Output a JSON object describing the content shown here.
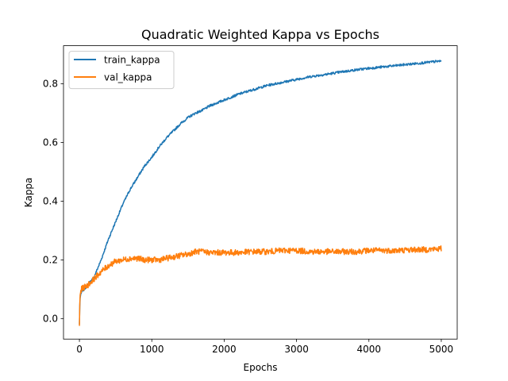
{
  "chart_data": {
    "type": "line",
    "title": "Quadratic Weighted Kappa vs Epochs",
    "xlabel": "Epochs",
    "ylabel": "Kappa",
    "xlim": [
      -220,
      5220
    ],
    "ylim": [
      -0.07,
      0.93
    ],
    "xticks": [
      0,
      1000,
      2000,
      3000,
      4000,
      5000
    ],
    "xtick_labels": [
      "0",
      "1000",
      "2000",
      "3000",
      "4000",
      "5000"
    ],
    "yticks": [
      0.0,
      0.2,
      0.4,
      0.6,
      0.8
    ],
    "ytick_labels": [
      "0.0",
      "0.2",
      "0.4",
      "0.6",
      "0.8"
    ],
    "grid": false,
    "legend_position": "top-left",
    "series": [
      {
        "name": "train_kappa",
        "color": "#1f77b4",
        "x": [
          0,
          5,
          10,
          20,
          30,
          50,
          100,
          200,
          300,
          400,
          500,
          600,
          700,
          800,
          900,
          1000,
          1100,
          1200,
          1300,
          1400,
          1500,
          1600,
          1700,
          1800,
          1900,
          2000,
          2200,
          2400,
          2600,
          2800,
          3000,
          3200,
          3400,
          3600,
          3800,
          4000,
          4200,
          4400,
          4600,
          4800,
          5000
        ],
        "values": [
          -0.02,
          0.04,
          0.07,
          0.085,
          0.09,
          0.095,
          0.11,
          0.14,
          0.2,
          0.27,
          0.33,
          0.39,
          0.44,
          0.48,
          0.52,
          0.55,
          0.585,
          0.615,
          0.64,
          0.665,
          0.685,
          0.7,
          0.71,
          0.725,
          0.735,
          0.745,
          0.765,
          0.78,
          0.795,
          0.805,
          0.815,
          0.825,
          0.832,
          0.84,
          0.847,
          0.853,
          0.858,
          0.863,
          0.868,
          0.873,
          0.878
        ]
      },
      {
        "name": "val_kappa",
        "color": "#ff7f0e",
        "x": [
          0,
          5,
          10,
          20,
          30,
          50,
          100,
          200,
          300,
          400,
          500,
          600,
          700,
          800,
          900,
          1000,
          1100,
          1200,
          1300,
          1400,
          1500,
          1600,
          1700,
          1800,
          1900,
          2000,
          2200,
          2400,
          2600,
          2800,
          3000,
          3200,
          3400,
          3600,
          3800,
          4000,
          4200,
          4400,
          4600,
          4800,
          5000
        ],
        "values": [
          -0.025,
          0.05,
          0.08,
          0.095,
          0.1,
          0.105,
          0.11,
          0.135,
          0.16,
          0.18,
          0.195,
          0.2,
          0.205,
          0.205,
          0.2,
          0.2,
          0.2,
          0.205,
          0.21,
          0.215,
          0.22,
          0.228,
          0.228,
          0.225,
          0.225,
          0.225,
          0.225,
          0.228,
          0.228,
          0.232,
          0.232,
          0.228,
          0.228,
          0.228,
          0.228,
          0.232,
          0.232,
          0.232,
          0.235,
          0.235,
          0.238
        ]
      }
    ]
  }
}
